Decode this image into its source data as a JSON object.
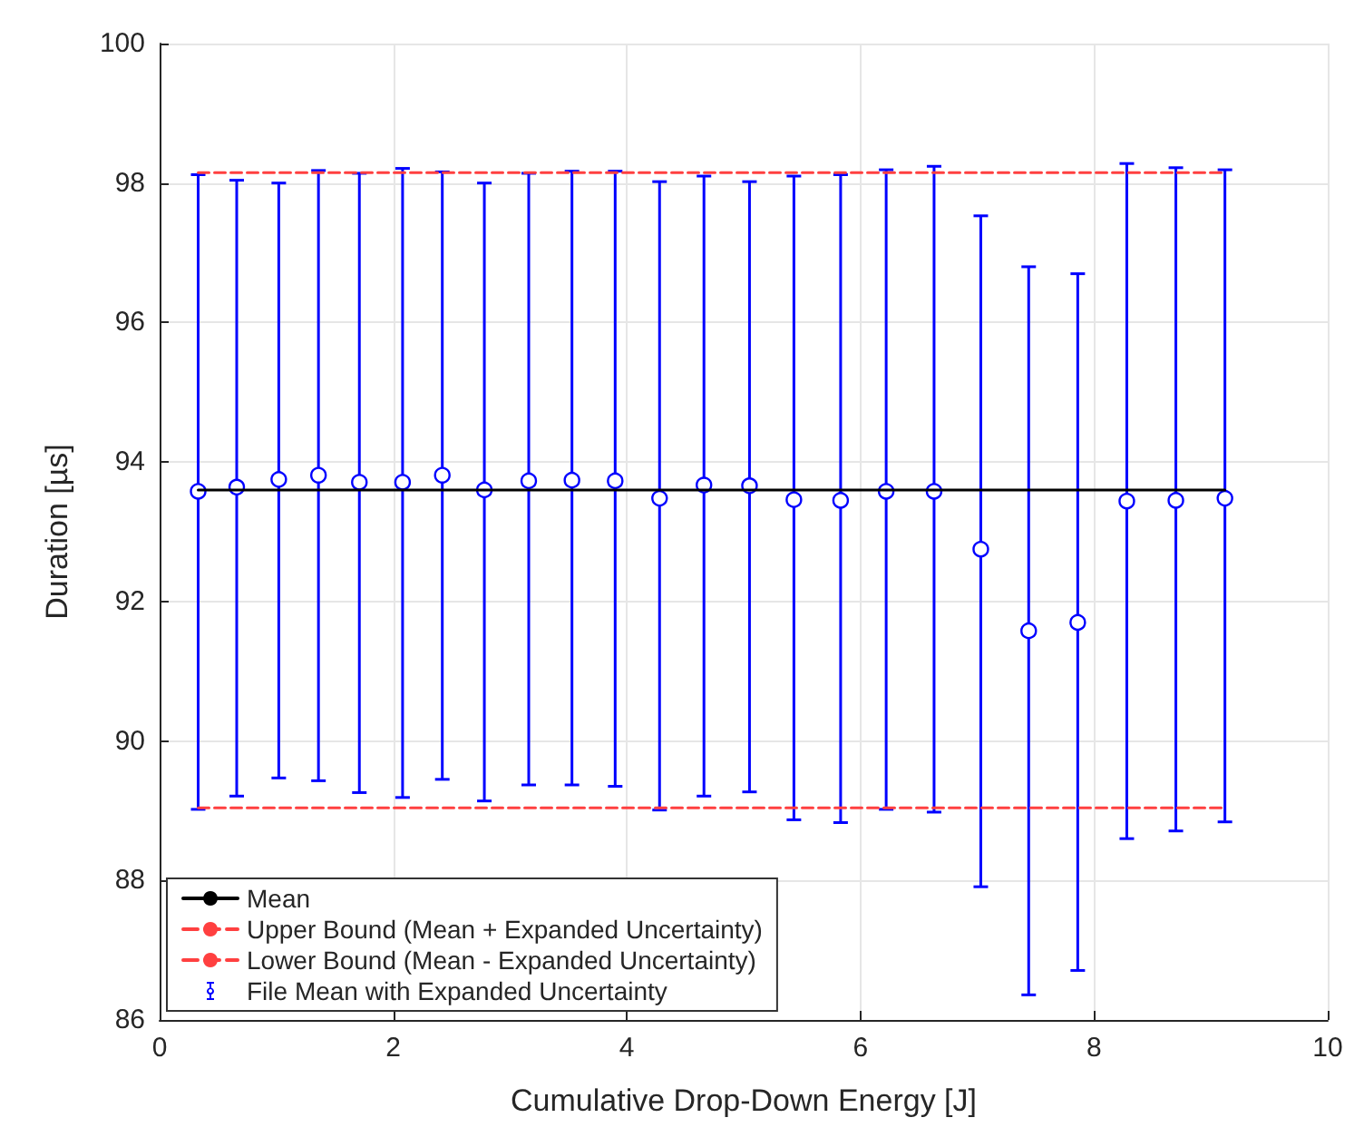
{
  "chart_data": {
    "type": "scatter",
    "xlabel": "Cumulative Drop-Down Energy [J]",
    "ylabel": "Duration [µs]",
    "xlim": [
      0,
      10
    ],
    "xticks": [
      0,
      2,
      4,
      6,
      8,
      10
    ],
    "ylim": [
      86,
      100
    ],
    "yticks": [
      86,
      88,
      90,
      92,
      94,
      96,
      98,
      100
    ],
    "grid": true,
    "legend": "bottom left",
    "series": [
      {
        "name": "Mean",
        "type": "line",
        "color": "#000000",
        "line_style": "solid",
        "marker": "none",
        "x": [
          0.33,
          9.12
        ],
        "values": [
          93.6,
          93.6
        ]
      },
      {
        "name": "Upper Bound (Mean + Expanded Uncertainty)",
        "type": "line",
        "color": "#ff4040",
        "line_style": "dashed",
        "marker": "none",
        "x": [
          0.33,
          9.12
        ],
        "values": [
          98.15,
          98.15
        ]
      },
      {
        "name": "Lower Bound (Mean - Expanded Uncertainty)",
        "type": "line",
        "color": "#ff4040",
        "line_style": "dashed",
        "marker": "none",
        "x": [
          0.33,
          9.12
        ],
        "values": [
          89.04,
          89.04
        ]
      },
      {
        "name": "File Mean with Expanded Uncertainty",
        "color": "#0000ff",
        "marker": "circle",
        "x": [
          0.33,
          0.66,
          1.02,
          1.36,
          1.71,
          2.08,
          2.42,
          2.78,
          3.16,
          3.53,
          3.9,
          4.28,
          4.66,
          5.05,
          5.43,
          5.83,
          6.22,
          6.63,
          7.03,
          7.44,
          7.86,
          8.28,
          8.7,
          9.12
        ],
        "values": [
          93.58,
          93.64,
          93.75,
          93.81,
          93.71,
          93.71,
          93.81,
          93.6,
          93.73,
          93.74,
          93.73,
          93.48,
          93.67,
          93.66,
          93.46,
          93.45,
          93.58,
          93.58,
          92.75,
          91.58,
          91.7,
          93.44,
          93.45,
          93.48
        ],
        "errors": [
          [
            89.02,
            98.12
          ],
          [
            89.21,
            98.04
          ],
          [
            89.47,
            98.0
          ],
          [
            89.43,
            98.18
          ],
          [
            89.26,
            98.14
          ],
          [
            89.19,
            98.21
          ],
          [
            89.45,
            98.16
          ],
          [
            89.14,
            98.0
          ],
          [
            89.37,
            98.14
          ],
          [
            89.37,
            98.17
          ],
          [
            89.35,
            98.17
          ],
          [
            89.01,
            98.02
          ],
          [
            89.21,
            98.1
          ],
          [
            89.27,
            98.02
          ],
          [
            88.87,
            98.1
          ],
          [
            88.83,
            98.12
          ],
          [
            89.02,
            98.19
          ],
          [
            88.98,
            98.24
          ],
          [
            87.91,
            97.53
          ],
          [
            86.36,
            96.8
          ],
          [
            86.71,
            96.7
          ],
          [
            88.6,
            98.28
          ],
          [
            88.71,
            98.22
          ],
          [
            88.84,
            98.19
          ]
        ]
      }
    ]
  }
}
